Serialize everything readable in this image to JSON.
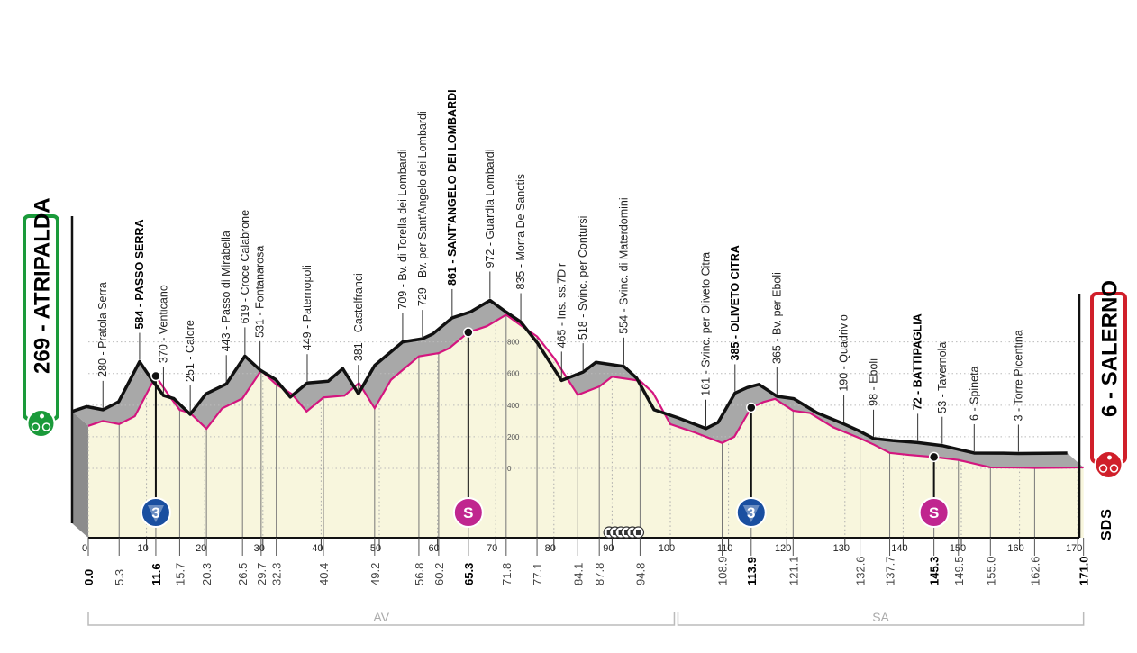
{
  "chart_data": {
    "type": "area",
    "title": "",
    "xlabel": "",
    "ylabel": "",
    "xlim": [
      0,
      171
    ],
    "x_ticks": [
      0,
      10,
      20,
      30,
      40,
      50,
      60,
      70,
      80,
      90,
      100,
      110,
      120,
      130,
      140,
      150,
      160,
      170
    ],
    "elevation_ticks": [
      0,
      200,
      400,
      600,
      800
    ],
    "start": {
      "elevation": "269",
      "name": "ATRIPALDA",
      "text": "269 - ATRIPALDA",
      "color": "#1a9a3a"
    },
    "finish": {
      "elevation": "6",
      "name": "SALERNO",
      "text": "6 - SALERNO",
      "color": "#d01f2a"
    },
    "profile": [
      [
        0,
        269
      ],
      [
        2.5,
        300
      ],
      [
        5.3,
        280
      ],
      [
        8,
        330
      ],
      [
        11.6,
        584
      ],
      [
        13.5,
        480
      ],
      [
        15.7,
        370
      ],
      [
        17.5,
        350
      ],
      [
        20.3,
        251
      ],
      [
        23,
        380
      ],
      [
        26.5,
        443
      ],
      [
        29.7,
        619
      ],
      [
        32.3,
        531
      ],
      [
        35,
        470
      ],
      [
        37.5,
        360
      ],
      [
        40.4,
        449
      ],
      [
        44,
        460
      ],
      [
        46.5,
        540
      ],
      [
        49.2,
        381
      ],
      [
        52,
        560
      ],
      [
        56.8,
        709
      ],
      [
        60.2,
        729
      ],
      [
        62,
        760
      ],
      [
        65.3,
        861
      ],
      [
        68.5,
        900
      ],
      [
        71.8,
        972
      ],
      [
        74.5,
        900
      ],
      [
        77.1,
        835
      ],
      [
        80,
        700
      ],
      [
        84.1,
        465
      ],
      [
        87.8,
        518
      ],
      [
        90,
        580
      ],
      [
        94.8,
        554
      ],
      [
        97,
        480
      ],
      [
        100,
        280
      ],
      [
        104,
        230
      ],
      [
        108.9,
        161
      ],
      [
        111,
        200
      ],
      [
        113.9,
        385
      ],
      [
        116,
        420
      ],
      [
        118,
        440
      ],
      [
        121.1,
        365
      ],
      [
        124,
        350
      ],
      [
        128,
        260
      ],
      [
        132.6,
        190
      ],
      [
        135,
        150
      ],
      [
        137.7,
        98
      ],
      [
        141,
        85
      ],
      [
        145.3,
        72
      ],
      [
        149.5,
        53
      ],
      [
        155,
        6
      ],
      [
        160,
        5
      ],
      [
        162.6,
        3
      ],
      [
        167,
        4
      ],
      [
        171,
        6
      ]
    ],
    "waypoints": [
      {
        "km": 5.3,
        "label": "280 - Pratola Serra",
        "bold": false
      },
      {
        "km": 11.6,
        "label": "584 - PASSO SERRA",
        "bold": true
      },
      {
        "km": 15.7,
        "label": "370 - Venticano",
        "bold": false
      },
      {
        "km": 20.3,
        "label": "251 - Calore",
        "bold": false
      },
      {
        "km": 26.5,
        "label": "443 - Passo di Mirabella",
        "bold": false
      },
      {
        "km": 29.7,
        "label": "619 - Croce Calabrone",
        "bold": false
      },
      {
        "km": 32.3,
        "label": "531 - Fontanarosa",
        "bold": false
      },
      {
        "km": 40.4,
        "label": "449 - Paternopoli",
        "bold": false
      },
      {
        "km": 49.2,
        "label": "381 - Castelfranci",
        "bold": false
      },
      {
        "km": 56.8,
        "label": "709 - Bv. di Torella dei Lombardi",
        "bold": false
      },
      {
        "km": 60.2,
        "label": "729 - Bv. per Sant'Angelo dei Lombardi",
        "bold": false
      },
      {
        "km": 65.3,
        "label": "861 - SANT'ANGELO DEI LOMBARDI",
        "bold": true
      },
      {
        "km": 71.8,
        "label": "972 - Guardia Lombardi",
        "bold": false
      },
      {
        "km": 77.1,
        "label": "835 - Morra De Sanctis",
        "bold": false
      },
      {
        "km": 84.1,
        "label": "465 - Ins. ss.7Dir",
        "bold": false
      },
      {
        "km": 87.8,
        "label": "518 - Svinc. per Contursi",
        "bold": false
      },
      {
        "km": 94.8,
        "label": "554 - Svinc. di Materdomini",
        "bold": false
      },
      {
        "km": 108.9,
        "label": "161 - Svinc. per Oliveto Citra",
        "bold": false
      },
      {
        "km": 113.9,
        "label": "385 - OLIVETO CITRA",
        "bold": true
      },
      {
        "km": 121.1,
        "label": "365 - Bv. per Eboli",
        "bold": false
      },
      {
        "km": 132.6,
        "label": "190 - Quadrivio",
        "bold": false
      },
      {
        "km": 137.7,
        "label": "98 - Eboli",
        "bold": false
      },
      {
        "km": 145.3,
        "label": "72 - BATTIPAGLIA",
        "bold": true
      },
      {
        "km": 149.5,
        "label": "53 - Tavernola",
        "bold": false
      },
      {
        "km": 155.0,
        "label": "6 - Spineta",
        "bold": false
      },
      {
        "km": 162.6,
        "label": "3 - Torre Picentina",
        "bold": false
      }
    ],
    "km_labels": [
      {
        "km": 0,
        "text": "0.0",
        "bold": true
      },
      {
        "km": 5.3,
        "text": "5.3",
        "bold": false
      },
      {
        "km": 11.6,
        "text": "11.6",
        "bold": true
      },
      {
        "km": 15.7,
        "text": "15.7",
        "bold": false
      },
      {
        "km": 20.3,
        "text": "20.3",
        "bold": false
      },
      {
        "km": 26.5,
        "text": "26.5",
        "bold": false
      },
      {
        "km": 29.7,
        "text": "29.7",
        "bold": false
      },
      {
        "km": 32.3,
        "text": "32.3",
        "bold": false
      },
      {
        "km": 40.4,
        "text": "40.4",
        "bold": false
      },
      {
        "km": 49.2,
        "text": "49.2",
        "bold": false
      },
      {
        "km": 56.8,
        "text": "56.8",
        "bold": false
      },
      {
        "km": 60.2,
        "text": "60.2",
        "bold": false
      },
      {
        "km": 65.3,
        "text": "65.3",
        "bold": true
      },
      {
        "km": 71.8,
        "text": "71.8",
        "bold": false
      },
      {
        "km": 77.1,
        "text": "77.1",
        "bold": false
      },
      {
        "km": 84.1,
        "text": "84.1",
        "bold": false
      },
      {
        "km": 87.8,
        "text": "87.8",
        "bold": false
      },
      {
        "km": 94.8,
        "text": "94.8",
        "bold": false
      },
      {
        "km": 108.9,
        "text": "108.9",
        "bold": false
      },
      {
        "km": 113.9,
        "text": "113.9",
        "bold": true
      },
      {
        "km": 121.1,
        "text": "121.1",
        "bold": false
      },
      {
        "km": 132.6,
        "text": "132.6",
        "bold": false
      },
      {
        "km": 137.7,
        "text": "137.7",
        "bold": false
      },
      {
        "km": 145.3,
        "text": "145.3",
        "bold": true
      },
      {
        "km": 149.5,
        "text": "149.5",
        "bold": false
      },
      {
        "km": 155.0,
        "text": "155.0",
        "bold": false
      },
      {
        "km": 162.6,
        "text": "162.6",
        "bold": false
      },
      {
        "km": 171.0,
        "text": "171.0",
        "bold": true
      }
    ],
    "markers": [
      {
        "km": 11.6,
        "type": "kom",
        "label": "3",
        "color": "#1a4fa0"
      },
      {
        "km": 65.3,
        "type": "sprint",
        "label": "S",
        "color": "#c0268f"
      },
      {
        "km": 113.9,
        "type": "kom",
        "label": "3",
        "color": "#1a4fa0"
      },
      {
        "km": 145.3,
        "type": "sprint",
        "label": "S",
        "color": "#c0268f"
      }
    ],
    "tunnels_km": [
      89.5,
      90.5,
      91.5,
      92.5,
      93.5,
      94.5
    ],
    "provinces": [
      {
        "label": "AV",
        "from": 0,
        "to": 101
      },
      {
        "label": "SA",
        "from": 101,
        "to": 171
      }
    ],
    "colors": {
      "profile_front": "#f8f6dd",
      "profile_top": "#a8a8a8",
      "profile_side": "#8c8c8c",
      "edge": "#d4157f",
      "ridge": "#111111"
    }
  },
  "logo": {
    "text": "SDS"
  }
}
